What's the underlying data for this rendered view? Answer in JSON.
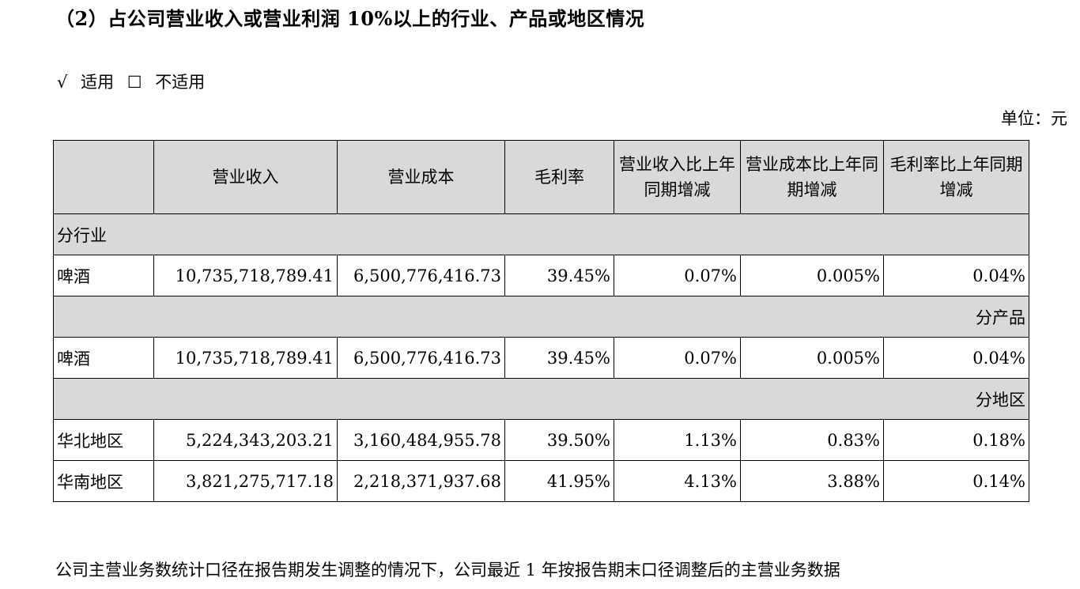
{
  "heading": "（2）占公司营业收入或营业利润 10%以上的行业、产品或地区情况",
  "applicability": {
    "check_mark": "√",
    "applicable_label": "适用",
    "checkbox_mark": "☐",
    "not_applicable_label": "不适用"
  },
  "unit_label": "单位：元",
  "table": {
    "headers": [
      "",
      "营业收入",
      "营业成本",
      "毛利率",
      "营业收入比上年同期增减",
      "营业成本比上年同期增减",
      "毛利率比上年同期增减"
    ],
    "sections": {
      "by_industry": "分行业",
      "by_product": "分产品",
      "by_region": "分地区"
    },
    "industry_rows": [
      [
        "啤酒",
        "10,735,718,789.41",
        "6,500,776,416.73",
        "39.45%",
        "0.07%",
        "0.005%",
        "0.04%"
      ]
    ],
    "product_rows": [
      [
        "啤酒",
        "10,735,718,789.41",
        "6,500,776,416.73",
        "39.45%",
        "0.07%",
        "0.005%",
        "0.04%"
      ]
    ],
    "region_rows": [
      [
        "华北地区",
        "5,224,343,203.21",
        "3,160,484,955.78",
        "39.50%",
        "1.13%",
        "0.83%",
        "0.18%"
      ],
      [
        "华南地区",
        "3,821,275,717.18",
        "2,218,371,937.68",
        "41.95%",
        "4.13%",
        "3.88%",
        "0.14%"
      ]
    ]
  },
  "footer_text": "公司主营业务数统计口径在报告期发生调整的情况下，公司最近 1 年按报告期末口径调整后的主营业务数据"
}
